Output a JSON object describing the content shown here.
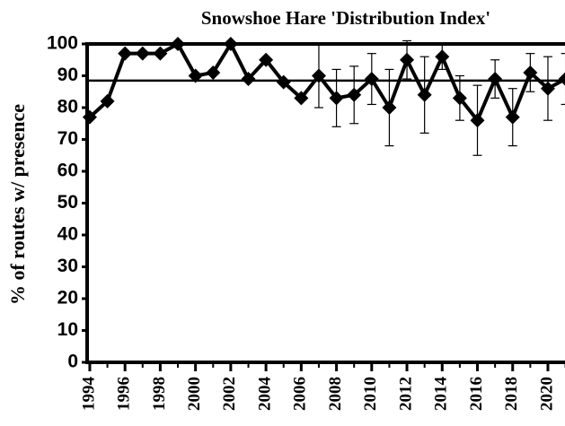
{
  "chart_data": {
    "type": "line",
    "title": "Snowshoe Hare 'Distribution Index'",
    "y_label": "% of routes w/ presence",
    "x": [
      1994,
      1995,
      1996,
      1997,
      1998,
      1999,
      2000,
      2001,
      2002,
      2003,
      2004,
      2005,
      2006,
      2007,
      2008,
      2009,
      2010,
      2011,
      2012,
      2013,
      2014,
      2015,
      2016,
      2017,
      2018,
      2019,
      2020,
      2021
    ],
    "series": [
      {
        "name": "Distribution Index",
        "color": "#000000",
        "values": [
          77,
          82,
          97,
          97,
          97,
          100,
          90,
          91,
          100,
          89,
          95,
          88,
          83,
          90,
          83,
          84,
          89,
          80,
          95,
          84,
          96,
          83,
          76,
          89,
          77,
          91,
          86,
          89
        ],
        "errors": [
          null,
          null,
          null,
          null,
          null,
          null,
          null,
          null,
          null,
          null,
          null,
          null,
          null,
          10,
          9,
          9,
          8,
          12,
          6,
          12,
          4,
          7,
          11,
          6,
          9,
          6,
          10,
          8
        ]
      }
    ],
    "mean_line": 88.5,
    "xlim": [
      1993.85,
      2020.97
    ],
    "xticks": [
      1994,
      1996,
      1998,
      2000,
      2002,
      2004,
      2006,
      2008,
      2010,
      2012,
      2014,
      2016,
      2018,
      2020
    ],
    "ylim": [
      0,
      100
    ],
    "yticks": [
      0,
      10,
      20,
      30,
      40,
      50,
      60,
      70,
      80,
      90,
      100
    ]
  }
}
